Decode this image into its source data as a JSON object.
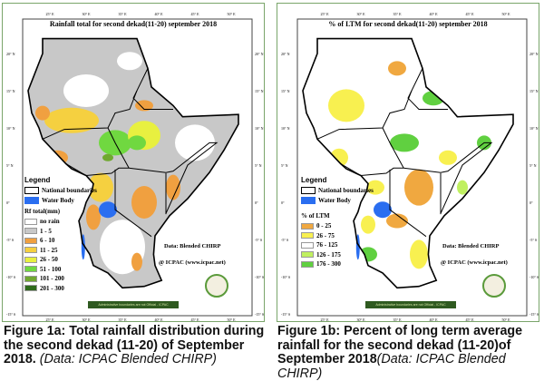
{
  "fig1a": {
    "title": "Rainfall total   for  second dekad(11-20) september 2018",
    "legend_title": "Legend",
    "boundary_label": "National boundaries",
    "water_label": "Water Body",
    "scale_title": "Rf total(mm)",
    "classes": [
      {
        "label": "no rain",
        "color": "#ffffff"
      },
      {
        "label": "1 - 5",
        "color": "#c8c8c8"
      },
      {
        "label": "6 - 10",
        "color": "#f0a040"
      },
      {
        "label": "11 - 25",
        "color": "#f5d040"
      },
      {
        "label": "26 - 50",
        "color": "#e8f040"
      },
      {
        "label": "51 - 100",
        "color": "#70d840"
      },
      {
        "label": "101 - 200",
        "color": "#70a830"
      },
      {
        "label": "201 - 300",
        "color": "#2e6a1a"
      }
    ],
    "data_note": "Data: Blended CHIRP",
    "credit": "@ ICPAC (www.icpac.net)",
    "disclaimer": "Administrative boundaries are not Official - ICPAC",
    "caption_bold": "Figure 1a: Total rainfall distribution during the second dekad (11-20) of September 2018.",
    "caption_italic": " (Data: ICPAC Blended CHIRP)"
  },
  "fig1b": {
    "title": "% of LTM  for  second dekad(11-20) september 2018",
    "legend_title": "Legend",
    "boundary_label": "National boundaries",
    "water_label": "Water Body",
    "scale_title": "% of  LTM",
    "classes": [
      {
        "label": "0 - 25",
        "color": "#f0a840"
      },
      {
        "label": "26 - 75",
        "color": "#f8f050"
      },
      {
        "label": "76 - 125",
        "color": "#ffffff"
      },
      {
        "label": "126 - 175",
        "color": "#c0f060"
      },
      {
        "label": "176 - 300",
        "color": "#60d040"
      }
    ],
    "data_note": "Data: Blended CHIRP",
    "credit": "@ ICPAC (www.icpac.net)",
    "disclaimer": "Administrative boundaries are not Official - ICPAC",
    "caption_bold": "Figure 1b: Percent of long term average rainfall for the second  dekad (11-20)of September 2018",
    "caption_italic": "(Data: ICPAC Blended CHIRP)"
  },
  "lon_labels": [
    "25° E",
    "30° E",
    "35° E",
    "40° E",
    "45° E",
    "50° E"
  ],
  "lat_labels": [
    "20° N",
    "15° N",
    "10° N",
    "5° N",
    "0°",
    "-5° S",
    "-10° S",
    "-15° S"
  ],
  "water_color": "#2a6ef0"
}
